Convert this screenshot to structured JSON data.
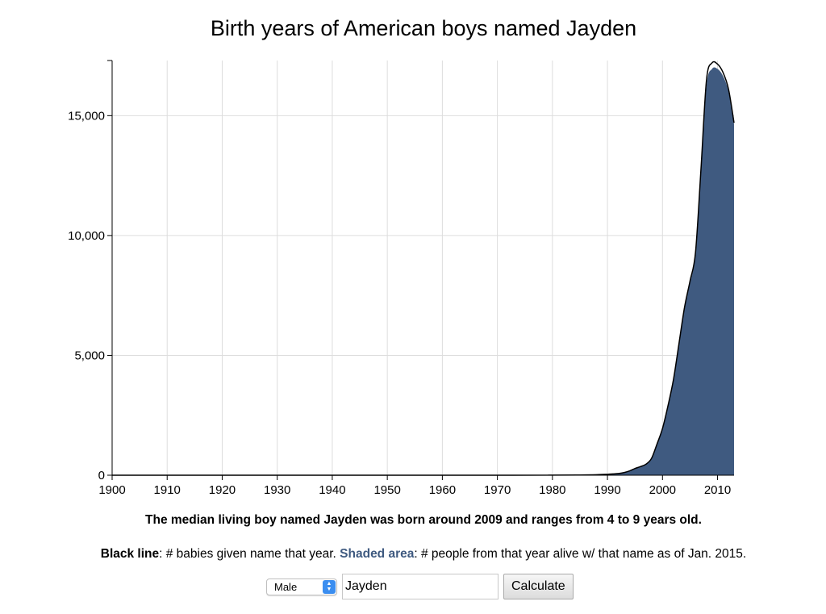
{
  "chart_data": {
    "type": "area",
    "title": "Birth years of American boys named Jayden",
    "xlabel": "",
    "ylabel": "",
    "xlim": [
      1900,
      2013
    ],
    "ylim": [
      0,
      17300
    ],
    "xticks": [
      1900,
      1910,
      1920,
      1930,
      1940,
      1950,
      1960,
      1970,
      1980,
      1990,
      2000,
      2010
    ],
    "yticks": [
      0,
      5000,
      10000,
      15000
    ],
    "grid": true,
    "line_color": "#000000",
    "area_color": "#3f5a80",
    "series": [
      {
        "kind": "line",
        "x": [
          1900,
          1970,
          1980,
          1985,
          1988,
          1990,
          1991,
          1992,
          1993,
          1994,
          1995,
          1996,
          1997,
          1998,
          1999,
          2000,
          2001,
          2002,
          2003,
          2004,
          2005,
          2006,
          2007,
          2008,
          2009,
          2010,
          2011,
          2012,
          2013
        ],
        "y": [
          0,
          0,
          5,
          10,
          20,
          40,
          55,
          70,
          110,
          180,
          280,
          360,
          460,
          700,
          1300,
          1950,
          2900,
          4000,
          5500,
          7000,
          8100,
          9300,
          12800,
          16500,
          17200,
          17150,
          16800,
          16100,
          14700
        ]
      },
      {
        "kind": "area",
        "x": [
          1900,
          1970,
          1980,
          1985,
          1988,
          1990,
          1991,
          1992,
          1993,
          1994,
          1995,
          1996,
          1997,
          1998,
          1999,
          2000,
          2001,
          2002,
          2003,
          2004,
          2005,
          2006,
          2007,
          2008,
          2009,
          2010,
          2011,
          2012,
          2013
        ],
        "y": [
          0,
          0,
          4,
          9,
          18,
          38,
          52,
          66,
          104,
          172,
          270,
          350,
          448,
          680,
          1270,
          1910,
          2850,
          3940,
          5430,
          6920,
          8020,
          9210,
          12650,
          16250,
          16950,
          16950,
          16650,
          16000,
          14650
        ]
      }
    ]
  },
  "summary": "The median living boy named Jayden was born around 2009 and ranges from 4 to 9 years old.",
  "legend": {
    "line_key": "Black line",
    "line_text": ": # babies given name that year. ",
    "area_key": "Shaded area",
    "area_text": ": # people from that year alive w/ that name as of Jan. 2015."
  },
  "controls": {
    "gender_selected": "Male",
    "name_value": "Jayden",
    "calculate_label": "Calculate"
  }
}
